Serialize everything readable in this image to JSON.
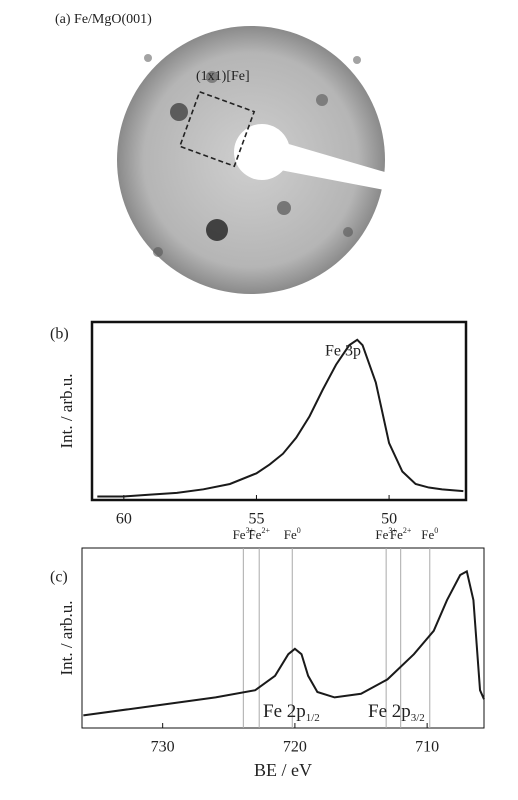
{
  "leed_panel": {
    "title": "(a) Fe/MgO(001)",
    "cell_label": "(1x1)[Fe]"
  },
  "chart_data": [
    {
      "type": "line",
      "panel_label": "(b)",
      "ylabel": "Int. / arb.u.",
      "annotation": "Fe 3p",
      "x": [
        61,
        60,
        59,
        58,
        57,
        56,
        55,
        54.5,
        54,
        53.5,
        53,
        52.5,
        52,
        51.5,
        51.2,
        51,
        50.5,
        50,
        49.5,
        49,
        48.5,
        48,
        47.2
      ],
      "values": [
        0.02,
        0.02,
        0.03,
        0.04,
        0.06,
        0.09,
        0.15,
        0.2,
        0.26,
        0.35,
        0.47,
        0.62,
        0.76,
        0.87,
        0.9,
        0.87,
        0.66,
        0.32,
        0.16,
        0.09,
        0.07,
        0.06,
        0.05
      ],
      "color": "#1a1a1a",
      "xlim": [
        61.2,
        47.1
      ],
      "ylim": [
        0,
        1
      ],
      "xticks": [
        60,
        55,
        50
      ]
    },
    {
      "type": "line",
      "panel_label": "(c)",
      "ylabel": "Int. / arb.u.",
      "xlabel": "BE / eV",
      "x": [
        736,
        730,
        726,
        723,
        721.5,
        720.5,
        720,
        719.5,
        719,
        718.3,
        717,
        715,
        713,
        711,
        709.5,
        708.5,
        707.5,
        707,
        706.5,
        706,
        705.7
      ],
      "values": [
        0.07,
        0.13,
        0.17,
        0.21,
        0.29,
        0.41,
        0.44,
        0.41,
        0.29,
        0.2,
        0.17,
        0.19,
        0.27,
        0.41,
        0.54,
        0.71,
        0.85,
        0.87,
        0.71,
        0.21,
        0.16
      ],
      "color": "#1a1a1a",
      "xlim": [
        736.1,
        705.7
      ],
      "ylim": [
        0,
        1
      ],
      "xticks": [
        730,
        720,
        710
      ],
      "reference_lines": [
        {
          "value": 723.9,
          "element": "Fe",
          "charge": "3+"
        },
        {
          "value": 722.7,
          "element": "Fe",
          "charge": "2+"
        },
        {
          "value": 720.2,
          "element": "Fe",
          "charge": "0"
        },
        {
          "value": 713.1,
          "element": "Fe",
          "charge": "3+"
        },
        {
          "value": 712.0,
          "element": "Fe",
          "charge": "2+"
        },
        {
          "value": 709.8,
          "element": "Fe",
          "charge": "0"
        }
      ],
      "peak_labels": [
        {
          "text": "Fe 2p",
          "sub": "1/2"
        },
        {
          "text": "Fe 2p",
          "sub": "3/2"
        }
      ]
    }
  ]
}
